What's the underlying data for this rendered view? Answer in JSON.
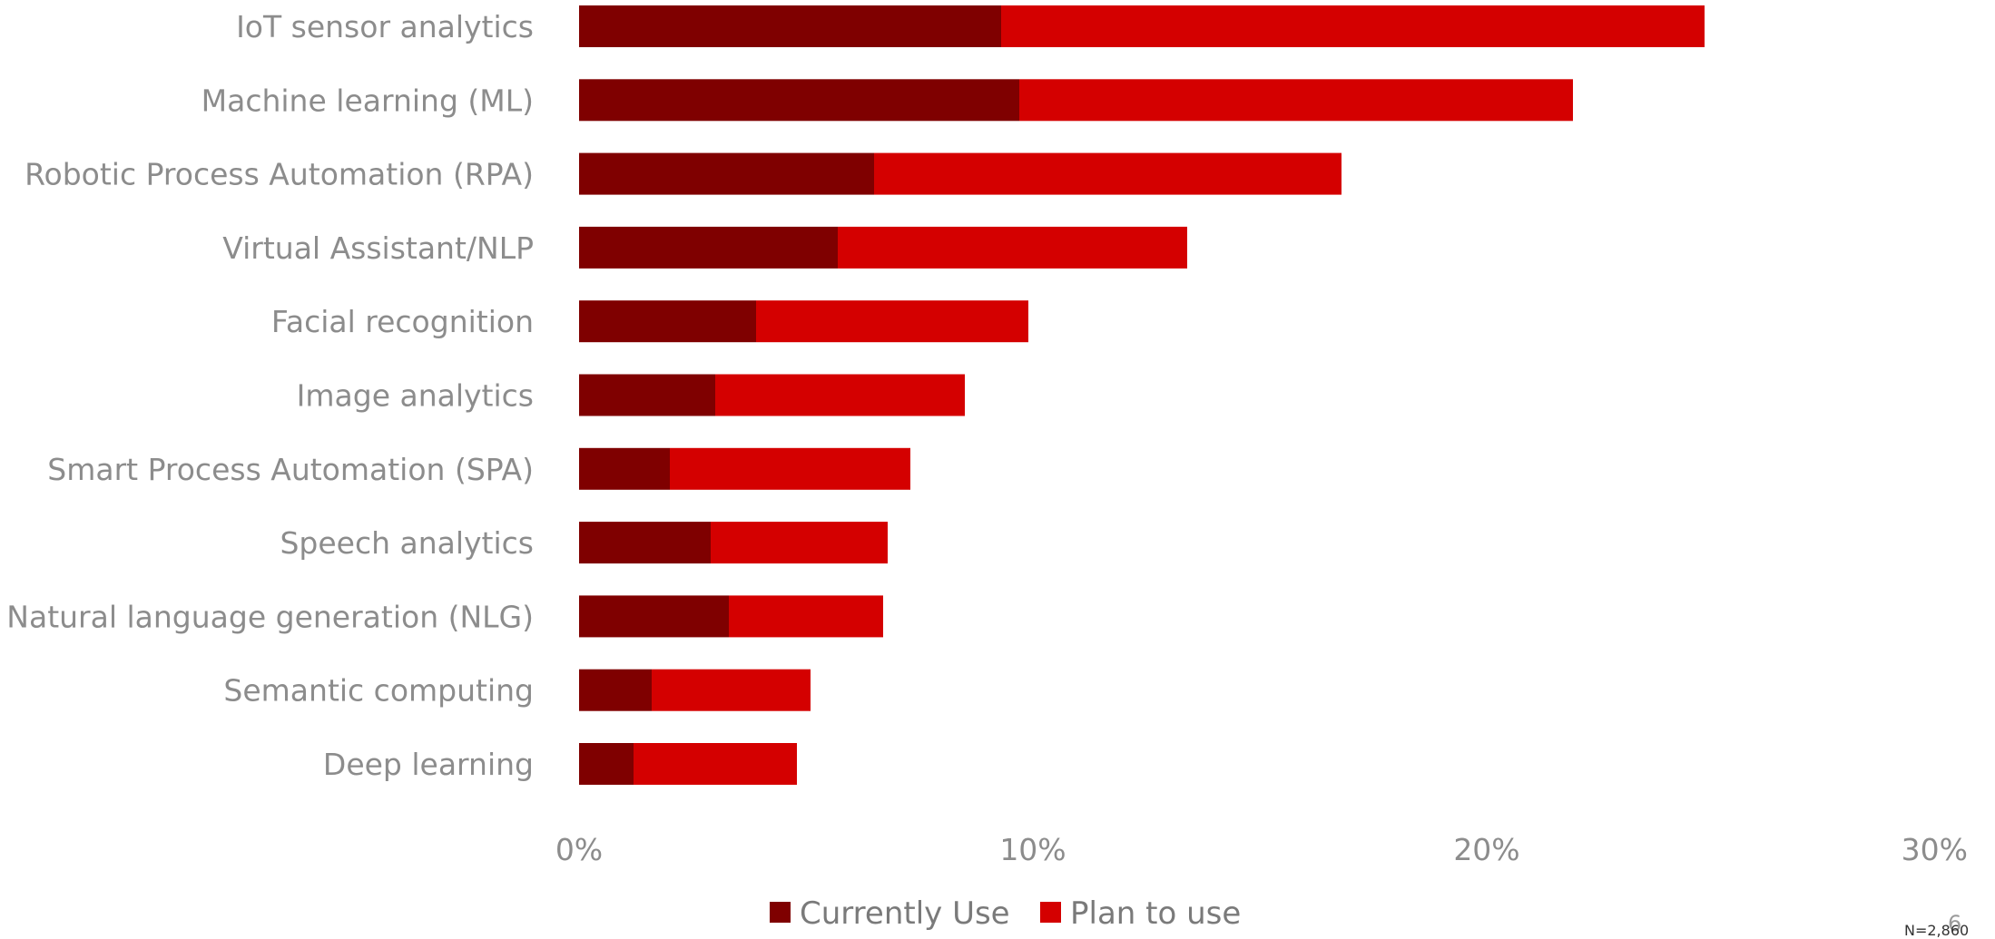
{
  "chart_data": {
    "type": "bar",
    "orientation": "horizontal",
    "stacked": true,
    "categories": [
      "IoT sensor analytics",
      "Machine learning (ML)",
      "Robotic Process Automation (RPA)",
      "Virtual Assistant/NLP",
      "Facial recognition",
      "Image analytics",
      "Smart Process Automation (SPA)",
      "Speech analytics",
      "Natural language generation (NLG)",
      "Semantic computing",
      "Deep learning"
    ],
    "series": [
      {
        "name": "Currently Use",
        "color": "#7f0000",
        "values": [
          9.3,
          9.7,
          6.5,
          5.7,
          3.9,
          3.0,
          2.0,
          2.9,
          3.3,
          1.6,
          1.2
        ]
      },
      {
        "name": "Plan to use",
        "color": "#d40000",
        "values": [
          15.5,
          12.2,
          10.3,
          7.7,
          6.0,
          5.5,
          5.3,
          3.9,
          3.4,
          3.5,
          3.6
        ]
      }
    ],
    "xlim": [
      0,
      30
    ],
    "xticks": [
      "0%",
      "10%",
      "20%",
      "30%"
    ],
    "grid": false,
    "legend": "bottom-center"
  },
  "footnote": {
    "sample": "N=2,860",
    "page": "6"
  }
}
